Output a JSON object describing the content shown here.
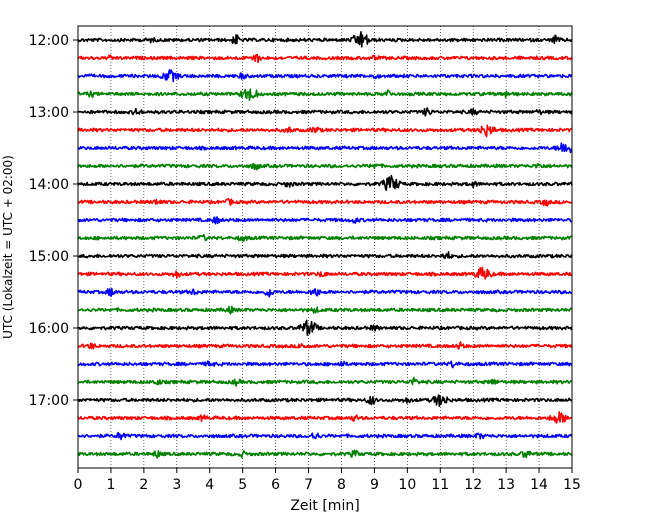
{
  "chart_data": {
    "type": "line",
    "title": "",
    "xlabel": "Zeit  [min]",
    "ylabel": "UTC (Lokalzeit = UTC + 02:00)",
    "xlim": [
      0,
      15
    ],
    "x_ticks": [
      "0",
      "1",
      "2",
      "3",
      "4",
      "5",
      "6",
      "7",
      "8",
      "9",
      "10",
      "11",
      "12",
      "13",
      "14",
      "15"
    ],
    "y_ticks": [
      "12:00",
      "13:00",
      "14:00",
      "15:00",
      "16:00",
      "17:00"
    ],
    "grid": "vertical dotted at each minute",
    "colors": [
      "#000000",
      "#ff0000",
      "#0000ff",
      "#008000"
    ],
    "series": [
      {
        "start": "12:00",
        "color": "#000000",
        "events": [
          [
            2.2,
            0.2
          ],
          [
            4.8,
            0.6
          ],
          [
            8.6,
            1.0
          ],
          [
            14.5,
            0.5
          ]
        ]
      },
      {
        "start": "12:15",
        "color": "#ff0000",
        "events": [
          [
            1.0,
            0.2
          ],
          [
            5.4,
            0.6
          ],
          [
            9.0,
            0.2
          ]
        ]
      },
      {
        "start": "12:30",
        "color": "#0000ff",
        "events": [
          [
            2.8,
            0.7
          ],
          [
            5.0,
            0.3
          ],
          [
            9.0,
            0.2
          ]
        ]
      },
      {
        "start": "12:45",
        "color": "#008000",
        "events": [
          [
            0.4,
            0.3
          ],
          [
            5.2,
            0.8
          ],
          [
            9.4,
            0.4
          ],
          [
            13.0,
            0.4
          ]
        ]
      },
      {
        "start": "13:00",
        "color": "#000000",
        "events": [
          [
            1.8,
            0.4
          ],
          [
            10.6,
            0.5
          ],
          [
            12.0,
            0.3
          ],
          [
            14.0,
            0.2
          ]
        ]
      },
      {
        "start": "13:15",
        "color": "#ff0000",
        "events": [
          [
            6.4,
            0.3
          ],
          [
            7.2,
            0.4
          ],
          [
            12.4,
            0.7
          ]
        ]
      },
      {
        "start": "13:30",
        "color": "#0000ff",
        "events": [
          [
            14.8,
            0.8
          ]
        ]
      },
      {
        "start": "13:45",
        "color": "#008000",
        "events": [
          [
            5.4,
            0.4
          ],
          [
            9.0,
            0.3
          ],
          [
            14.0,
            0.3
          ]
        ]
      },
      {
        "start": "14:00",
        "color": "#000000",
        "events": [
          [
            6.4,
            0.3
          ],
          [
            9.5,
            1.0
          ],
          [
            12.0,
            0.3
          ]
        ]
      },
      {
        "start": "14:15",
        "color": "#ff0000",
        "events": [
          [
            2.4,
            0.3
          ],
          [
            4.6,
            0.3
          ],
          [
            14.2,
            0.4
          ]
        ]
      },
      {
        "start": "14:30",
        "color": "#0000ff",
        "events": [
          [
            4.2,
            0.4
          ],
          [
            8.4,
            0.3
          ]
        ]
      },
      {
        "start": "14:45",
        "color": "#008000",
        "events": [
          [
            3.8,
            0.3
          ],
          [
            5.0,
            0.3
          ]
        ]
      },
      {
        "start": "15:00",
        "color": "#000000",
        "events": [
          [
            11.2,
            0.5
          ]
        ]
      },
      {
        "start": "15:15",
        "color": "#ff0000",
        "events": [
          [
            3.0,
            0.4
          ],
          [
            7.4,
            0.3
          ],
          [
            12.3,
            0.8
          ]
        ]
      },
      {
        "start": "15:30",
        "color": "#0000ff",
        "events": [
          [
            1.0,
            0.5
          ],
          [
            3.5,
            0.3
          ],
          [
            5.8,
            0.6
          ],
          [
            7.2,
            0.6
          ]
        ]
      },
      {
        "start": "15:45",
        "color": "#008000",
        "events": [
          [
            4.6,
            0.4
          ],
          [
            7.2,
            0.3
          ]
        ]
      },
      {
        "start": "16:00",
        "color": "#000000",
        "events": [
          [
            7.0,
            1.0
          ],
          [
            9.0,
            0.3
          ]
        ]
      },
      {
        "start": "16:15",
        "color": "#ff0000",
        "events": [
          [
            0.4,
            0.3
          ],
          [
            6.8,
            0.3
          ],
          [
            11.6,
            0.4
          ]
        ]
      },
      {
        "start": "16:30",
        "color": "#0000ff",
        "events": [
          [
            4.0,
            0.3
          ],
          [
            8.0,
            0.3
          ],
          [
            11.4,
            0.4
          ]
        ]
      },
      {
        "start": "16:45",
        "color": "#008000",
        "events": [
          [
            2.4,
            0.3
          ],
          [
            4.8,
            0.3
          ],
          [
            10.2,
            0.4
          ],
          [
            12.6,
            0.3
          ]
        ]
      },
      {
        "start": "17:00",
        "color": "#000000",
        "events": [
          [
            8.9,
            0.6
          ],
          [
            11.0,
            0.7
          ],
          [
            10.0,
            0.3
          ]
        ]
      },
      {
        "start": "17:15",
        "color": "#ff0000",
        "events": [
          [
            3.8,
            0.3
          ],
          [
            8.4,
            0.3
          ],
          [
            14.6,
            0.7
          ]
        ]
      },
      {
        "start": "17:30",
        "color": "#0000ff",
        "events": [
          [
            1.3,
            0.5
          ],
          [
            7.2,
            0.5
          ],
          [
            12.2,
            0.3
          ]
        ]
      },
      {
        "start": "17:45",
        "color": "#008000",
        "events": [
          [
            2.4,
            0.4
          ],
          [
            5.0,
            0.3
          ],
          [
            8.4,
            0.4
          ],
          [
            13.6,
            0.5
          ]
        ]
      }
    ]
  }
}
